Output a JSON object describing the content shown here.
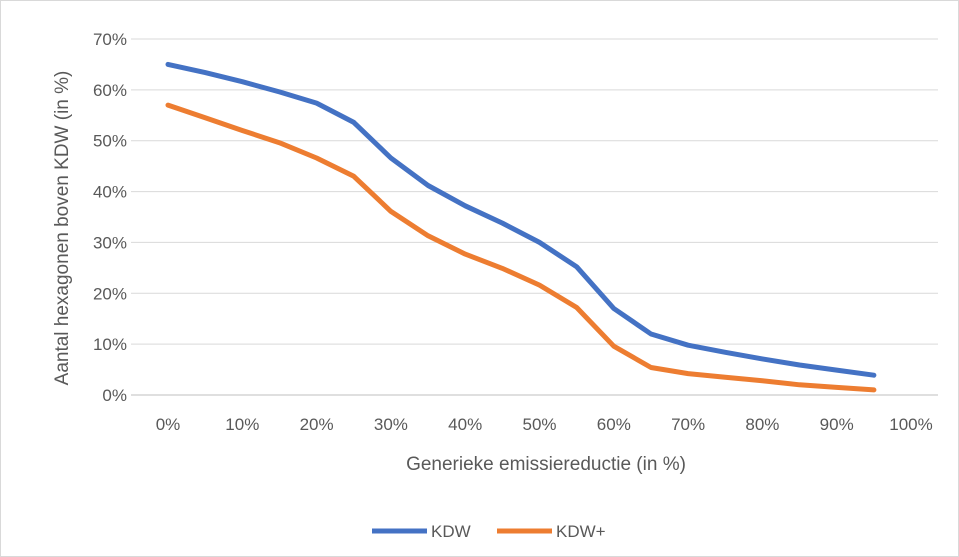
{
  "chart_data": {
    "type": "line",
    "title": "",
    "xlabel": "Generieke emissiereductie (in %)",
    "ylabel": "Aantal hexagonen boven KDW (in %)",
    "x_ticks": [
      "0%",
      "10%",
      "20%",
      "30%",
      "40%",
      "50%",
      "60%",
      "70%",
      "80%",
      "90%",
      "100%"
    ],
    "y_ticks": [
      "0%",
      "10%",
      "20%",
      "30%",
      "40%",
      "50%",
      "60%",
      "70%"
    ],
    "xlim": [
      0,
      100
    ],
    "ylim": [
      0,
      70
    ],
    "grid": "horizontal",
    "legend_position": "bottom",
    "x": [
      0,
      5,
      10,
      15,
      20,
      25,
      30,
      35,
      40,
      45,
      50,
      55,
      60,
      65,
      70,
      75,
      80,
      85,
      90,
      95
    ],
    "series": [
      {
        "name": "KDW",
        "color": "#4472C4",
        "values": [
          65,
          63.4,
          61.6,
          59.6,
          57.4,
          53.6,
          46.6,
          41.2,
          37.2,
          33.8,
          30,
          25.2,
          17,
          12,
          9.8,
          8.4,
          7.1,
          5.9,
          4.9,
          3.9
        ]
      },
      {
        "name": "KDW+",
        "color": "#ED7D31",
        "values": [
          57,
          54.5,
          52,
          49.6,
          46.6,
          43,
          36.1,
          31.3,
          27.7,
          24.9,
          21.6,
          17.2,
          9.6,
          5.4,
          4.2,
          3.5,
          2.8,
          2.0,
          1.5,
          1.0
        ]
      }
    ]
  }
}
